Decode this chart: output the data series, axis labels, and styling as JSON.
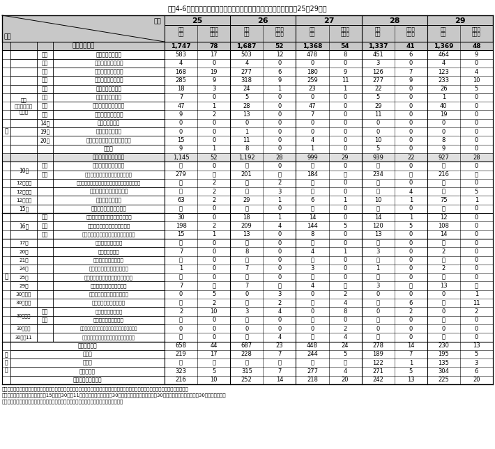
{
  "title": "図表4-6　暴力団対策法に基づく中止命令等の発出件数の推移（平成25〜29年）",
  "years": [
    "25",
    "26",
    "27",
    "28",
    "29"
  ],
  "rows": [
    {
      "label0": "合",
      "label1": "",
      "label2": "",
      "label3": "計（件）",
      "bold": true,
      "values": [
        "1,747",
        "78",
        "1,687",
        "52",
        "1,368",
        "54",
        "1,337",
        "41",
        "1,369",
        "48"
      ]
    },
    {
      "label0": "",
      "label1": "",
      "label2": "２号",
      "label3": "不当贈与要求行為",
      "bold": false,
      "values": [
        "583",
        "17",
        "503",
        "12",
        "478",
        "8",
        "451",
        "6",
        "464",
        "9"
      ]
    },
    {
      "label0": "",
      "label1": "",
      "label2": "３号",
      "label3": "不当下請等要求行為",
      "bold": false,
      "values": [
        "4",
        "0",
        "4",
        "0",
        "0",
        "0",
        "3",
        "0",
        "4",
        "0"
      ]
    },
    {
      "label0": "",
      "label1": "",
      "label2": "４号",
      "label3": "みかじめ料要求行為",
      "bold": false,
      "values": [
        "168",
        "19",
        "277",
        "6",
        "180",
        "9",
        "126",
        "7",
        "123",
        "4"
      ]
    },
    {
      "label0": "",
      "label1": "９条\n（暴力的要求\n行為）",
      "label2": "５号",
      "label3": "用心棒料等要求行為",
      "bold": false,
      "values": [
        "285",
        "9",
        "318",
        "9",
        "259",
        "11",
        "277",
        "9",
        "233",
        "10"
      ]
    },
    {
      "label0": "",
      "label1": "",
      "label2": "６号",
      "label3": "高利債権取立行為",
      "bold": false,
      "values": [
        "18",
        "3",
        "24",
        "1",
        "23",
        "1",
        "22",
        "0",
        "26",
        "5"
      ]
    },
    {
      "label0": "",
      "label1": "",
      "label2": "７号",
      "label3": "不当債権取立行為",
      "bold": false,
      "values": [
        "7",
        "0",
        "5",
        "0",
        "0",
        "0",
        "5",
        "0",
        "1",
        "0"
      ]
    },
    {
      "label0": "形",
      "label1": "",
      "label2": "８号",
      "label3": "不当債務免除要求行為",
      "bold": false,
      "values": [
        "47",
        "1",
        "28",
        "0",
        "47",
        "0",
        "29",
        "0",
        "40",
        "0"
      ]
    },
    {
      "label0": "",
      "label1": "",
      "label2": "９号",
      "label3": "不当貸付等要求行為",
      "bold": false,
      "values": [
        "9",
        "2",
        "13",
        "0",
        "7",
        "0",
        "11",
        "0",
        "19",
        "0"
      ]
    },
    {
      "label0": "",
      "label1": "",
      "label2": "14号",
      "label3": "競売等妨害行為",
      "bold": false,
      "values": [
        "0",
        "0",
        "0",
        "0",
        "0",
        "0",
        "0",
        "0",
        "0",
        "0"
      ]
    },
    {
      "label0": "",
      "label1": "",
      "label2": "19号",
      "label3": "不当示談介入行為",
      "bold": false,
      "values": [
        "0",
        "0",
        "1",
        "0",
        "0",
        "0",
        "0",
        "0",
        "0",
        "0"
      ]
    },
    {
      "label0": "",
      "label1": "",
      "label2": "20号",
      "label3": "因縁をつけての金品等要求行為",
      "bold": false,
      "values": [
        "15",
        "0",
        "11",
        "0",
        "4",
        "0",
        "10",
        "0",
        "8",
        "0"
      ]
    },
    {
      "label0": "",
      "label1": "",
      "label2": "",
      "label3": "その他",
      "bold": false,
      "values": [
        "9",
        "1",
        "8",
        "0",
        "1",
        "0",
        "5",
        "0",
        "9",
        "0"
      ]
    },
    {
      "label0": "",
      "label1": "",
      "label2": "",
      "label3": "暴力的要求行為の合計",
      "bold": false,
      "values": [
        "1,145",
        "52",
        "1,192",
        "28",
        "999",
        "29",
        "939",
        "22",
        "927",
        "28"
      ]
    },
    {
      "label0": "",
      "label1": "10条",
      "label2": "１項",
      "label3": "暴力的要求行為の要求",
      "bold": false,
      "values": [
        "－",
        "0",
        "－",
        "0",
        "－",
        "0",
        "－",
        "0",
        "－",
        "0"
      ]
    },
    {
      "label0": "",
      "label1": "",
      "label2": "２項",
      "label3": "暴力的要求行為の現場立会援助行為",
      "bold": false,
      "values": [
        "279",
        "－",
        "201",
        "－",
        "184",
        "－",
        "234",
        "－",
        "216",
        "－"
      ]
    },
    {
      "label0": "",
      "label1": "12条の２",
      "label2": "",
      "label3": "指定暴力団等の業務に関し行われる暴力的要求行為",
      "bold": false,
      "values": [
        "－",
        "2",
        "－",
        "2",
        "－",
        "0",
        "－",
        "0",
        "－",
        "0"
      ]
    },
    {
      "label0": "懸",
      "label1": "12条の３",
      "label2": "",
      "label3": "準暴力的要求行為の要求等",
      "bold": false,
      "values": [
        "－",
        "2",
        "－",
        "3",
        "－",
        "0",
        "－",
        "4",
        "－",
        "5"
      ]
    },
    {
      "label0": "",
      "label1": "12条の５",
      "label2": "",
      "label3": "準暴力的要求行為",
      "bold": false,
      "values": [
        "63",
        "2",
        "29",
        "1",
        "6",
        "1",
        "10",
        "1",
        "75",
        "1"
      ]
    },
    {
      "label0": "",
      "label1": "15条",
      "label2": "",
      "label3": "暴力団事務所の使用制限",
      "bold": false,
      "values": [
        "－",
        "0",
        "－",
        "0",
        "－",
        "0",
        "－",
        "0",
        "－",
        "0"
      ]
    },
    {
      "label0": "",
      "label1": "16条",
      "label2": "１項",
      "label3": "少年に対する加入強要・脱退妨害",
      "bold": false,
      "values": [
        "30",
        "0",
        "18",
        "1",
        "14",
        "0",
        "14",
        "1",
        "12",
        "0"
      ]
    },
    {
      "label0": "別",
      "label1": "",
      "label2": "２項",
      "label3": "威迫による加入強要・脱退妨害",
      "bold": false,
      "values": [
        "198",
        "2",
        "209",
        "4",
        "144",
        "5",
        "120",
        "5",
        "108",
        "0"
      ]
    },
    {
      "label0": "",
      "label1": "",
      "label2": "３項",
      "label3": "密接関係者に対する加入強要・脱退妨害",
      "bold": false,
      "values": [
        "15",
        "1",
        "13",
        "0",
        "8",
        "0",
        "13",
        "0",
        "14",
        "0"
      ]
    },
    {
      "label0": "",
      "label1": "17条",
      "label2": "",
      "label3": "加入の強要の命令等",
      "bold": false,
      "values": [
        "－",
        "0",
        "－",
        "0",
        "－",
        "0",
        "－",
        "0",
        "－",
        "0"
      ]
    },
    {
      "label0": "",
      "label1": "20条",
      "label2": "",
      "label3": "指詰めの強要等",
      "bold": false,
      "values": [
        "7",
        "0",
        "8",
        "0",
        "4",
        "1",
        "3",
        "0",
        "2",
        "0"
      ]
    },
    {
      "label0": "",
      "label1": "21条",
      "label2": "",
      "label3": "指詰めの強要の命令等",
      "bold": false,
      "values": [
        "－",
        "0",
        "－",
        "0",
        "－",
        "0",
        "－",
        "0",
        "－",
        "0"
      ]
    },
    {
      "label0": "",
      "label1": "24条",
      "label2": "",
      "label3": "少年に対する入れ墨の強要等",
      "bold": false,
      "values": [
        "1",
        "0",
        "7",
        "0",
        "3",
        "0",
        "1",
        "0",
        "2",
        "0"
      ]
    },
    {
      "label0": "",
      "label1": "25条",
      "label2": "",
      "label3": "少年に対する入れ墨の強要の要求等",
      "bold": false,
      "values": [
        "－",
        "0",
        "－",
        "0",
        "－",
        "0",
        "－",
        "0",
        "－",
        "0"
      ]
    },
    {
      "label0": "",
      "label1": "29条",
      "label2": "",
      "label3": "事務所等における禁止行為",
      "bold": false,
      "values": [
        "7",
        "－",
        "7",
        "－",
        "4",
        "－",
        "3",
        "－",
        "13",
        "－"
      ]
    },
    {
      "label0": "",
      "label1": "30条の２",
      "label2": "",
      "label3": "損害賠償請求等の妨害の禁止",
      "bold": false,
      "values": [
        "0",
        "5",
        "0",
        "3",
        "0",
        "2",
        "0",
        "0",
        "0",
        "1"
      ]
    },
    {
      "label0": "",
      "label1": "30条の５",
      "label2": "",
      "label3": "暴力行為の賛揚等の規制",
      "bold": false,
      "values": [
        "－",
        "2",
        "－",
        "2",
        "－",
        "4",
        "－",
        "6",
        "－",
        "11"
      ]
    },
    {
      "label0": "",
      "label1": "30条の６",
      "label2": "１項",
      "label3": "用心棒の役務提供等",
      "bold": false,
      "values": [
        "2",
        "10",
        "3",
        "4",
        "0",
        "8",
        "0",
        "2",
        "0",
        "2"
      ]
    },
    {
      "label0": "",
      "label1": "",
      "label2": "２項",
      "label3": "用心棒行為等の要求等",
      "bold": false,
      "values": [
        "－",
        "0",
        "－",
        "0",
        "－",
        "0",
        "－",
        "0",
        "－",
        "0"
      ]
    },
    {
      "label0": "",
      "label1": "30条の９",
      "label2": "",
      "label3": "特定危険指定暴力団等の指定暴力団員の禁止行為",
      "bold": false,
      "values": [
        "0",
        "0",
        "0",
        "0",
        "0",
        "2",
        "0",
        "0",
        "0",
        "0"
      ]
    },
    {
      "label0": "",
      "label1": "30条の11",
      "label2": "",
      "label3": "特定危険指定暴力団等の事務所の使用制限",
      "bold": false,
      "values": [
        "－",
        "0",
        "－",
        "4",
        "－",
        "4",
        "－",
        "0",
        "－",
        "0"
      ]
    },
    {
      "label0": "",
      "label1": "",
      "label2": "",
      "label3": "六代目山口組",
      "bold": false,
      "section": "団体別",
      "values": [
        "658",
        "44",
        "687",
        "23",
        "448",
        "24",
        "278",
        "14",
        "230",
        "13"
      ]
    },
    {
      "label0": "",
      "label1": "",
      "label2": "",
      "label3": "稲川会",
      "bold": false,
      "section": "団体別",
      "values": [
        "219",
        "17",
        "228",
        "7",
        "244",
        "5",
        "189",
        "7",
        "195",
        "5"
      ]
    },
    {
      "label0": "",
      "label1": "",
      "label2": "",
      "label3": "住吉会",
      "bold": false,
      "section": "団体別",
      "values": [
        "－",
        "－",
        "－",
        "－",
        "－",
        "－",
        "122",
        "1",
        "135",
        "3"
      ]
    },
    {
      "label0": "",
      "label1": "",
      "label2": "",
      "label3": "神戸山口組",
      "bold": false,
      "section": "団体別",
      "values": [
        "323",
        "5",
        "315",
        "7",
        "277",
        "4",
        "271",
        "5",
        "304",
        "6"
      ]
    },
    {
      "label0": "",
      "label1": "",
      "label2": "",
      "label3": "その他の指定暴力団",
      "bold": false,
      "section": "団体別",
      "values": [
        "216",
        "10",
        "252",
        "14",
        "218",
        "20",
        "242",
        "13",
        "225",
        "20"
      ]
    }
  ],
  "notes": [
    "注１：「中止命令」欄の「－」は中止命令の規定がないこと、「その他の命令」欄の「－」は中止命令以外の命令の規定がないことを示す。",
    "　２：「その他の命令」のうち、15条及び30条の11は事務所使用制限命令、30条の２は請求妨害防止命令、30条の５は賛揚等禁止命令、30条の６・１項は",
    "　　　再発防止命令及び用心棒行為等防止命令であり、これら以外は再発防止命令である。"
  ]
}
